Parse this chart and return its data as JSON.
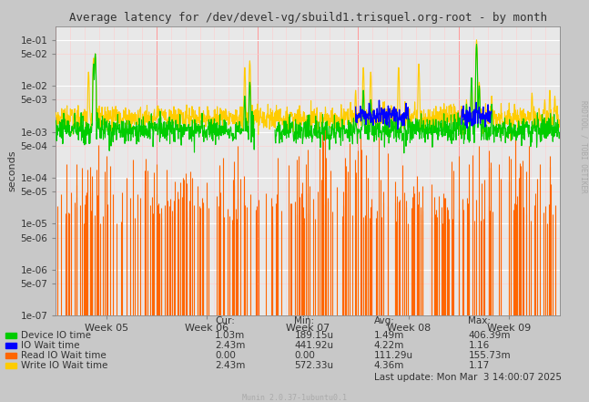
{
  "title": "Average latency for /dev/devel-vg/sbuild1.trisquel.org-root - by month",
  "ylabel": "seconds",
  "xlabel_ticks": [
    "Week 05",
    "Week 06",
    "Week 07",
    "Week 08",
    "Week 09"
  ],
  "bg_color": "#c8c8c8",
  "plot_bg_color": "#e8e8e8",
  "ylim_min": 1e-07,
  "ylim_max": 0.2,
  "yticks_major": [
    1e-07,
    1e-06,
    1e-05,
    0.0001,
    0.001,
    0.01,
    0.1
  ],
  "yticks_minor": [
    5e-07,
    5e-06,
    5e-05,
    0.0005,
    0.005,
    0.05
  ],
  "green_color": "#00cc00",
  "blue_color": "#0000ff",
  "orange_color": "#ff6600",
  "yellow_color": "#ffcc00",
  "legend_items": [
    {
      "label": "Device IO time",
      "color": "#00cc00"
    },
    {
      "label": "IO Wait time",
      "color": "#0000ff"
    },
    {
      "label": "Read IO Wait time",
      "color": "#ff6600"
    },
    {
      "label": "Write IO Wait time",
      "color": "#ffcc00"
    }
  ],
  "legend_stats": {
    "cur": [
      "1.03m",
      "2.43m",
      "0.00",
      "2.43m"
    ],
    "min": [
      "189.15u",
      "441.92u",
      "0.00",
      "572.33u"
    ],
    "avg": [
      "1.49m",
      "4.22m",
      "111.29u",
      "4.36m"
    ],
    "max": [
      "406.39m",
      "1.16",
      "155.73m",
      "1.17"
    ]
  },
  "footer": "Last update: Mon Mar  3 14:00:07 2025",
  "munin_version": "Munin 2.0.37-1ubuntu0.1",
  "right_label": "RRDTOOL / TOBI OETIKER"
}
